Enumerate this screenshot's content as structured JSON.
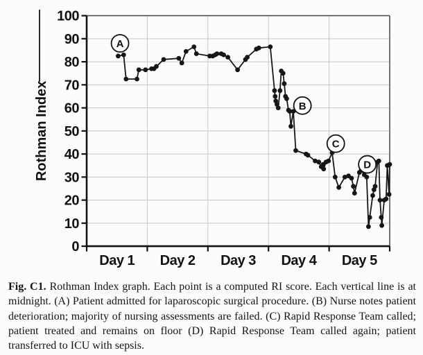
{
  "caption": {
    "label": "Fig. C1.",
    "text": "Rothman Index graph. Each point is a computed RI score. Each vertical line is at midnight. (A) Patient admitted for laparoscopic surgical procedure. (B) Nurse notes patient deterioration; majority of nursing assessments are failed. (C) Rapid Response Team called; patient treated and remains on floor (D) Rapid Response Team called again; patient transferred to ICU with sepsis.",
    "annotation_letters": [
      "A",
      "B",
      "C",
      "D"
    ]
  },
  "chart_data": {
    "type": "line",
    "title": "",
    "xlabel": "",
    "ylabel": "Rothman Index",
    "ylim": [
      0,
      100
    ],
    "xlim": [
      0,
      5
    ],
    "y_ticks": [
      0,
      10,
      20,
      30,
      40,
      50,
      60,
      70,
      80,
      90,
      100
    ],
    "x_tick_labels": [
      "Day 1",
      "Day 2",
      "Day 3",
      "Day 4",
      "Day 5"
    ],
    "grid": true,
    "legend": "none",
    "line_color": "#161616",
    "marker_color": "#161616",
    "grid_color": "#c6c6c6",
    "border_color": "#4f4f4f",
    "axis_color": "#111111",
    "points": [
      [
        0.52,
        82.5
      ],
      [
        0.61,
        83
      ],
      [
        0.65,
        72.5
      ],
      [
        0.83,
        72.5
      ],
      [
        0.86,
        76.5
      ],
      [
        0.97,
        76.5
      ],
      [
        1.07,
        77
      ],
      [
        1.11,
        77
      ],
      [
        1.15,
        78
      ],
      [
        1.27,
        81
      ],
      [
        1.52,
        81.5
      ],
      [
        1.57,
        79.5
      ],
      [
        1.64,
        84.5
      ],
      [
        1.77,
        86.5
      ],
      [
        1.81,
        83.5
      ],
      [
        2.03,
        82.5
      ],
      [
        2.08,
        82.5
      ],
      [
        2.12,
        83
      ],
      [
        2.15,
        83.5
      ],
      [
        2.22,
        83.5
      ],
      [
        2.26,
        83
      ],
      [
        2.33,
        82
      ],
      [
        2.49,
        76.5
      ],
      [
        2.62,
        81
      ],
      [
        2.65,
        82
      ],
      [
        2.8,
        85.5
      ],
      [
        2.84,
        86
      ],
      [
        3.03,
        86.5
      ],
      [
        3.1,
        67.5
      ],
      [
        3.11,
        65
      ],
      [
        3.12,
        63
      ],
      [
        3.14,
        61.5
      ],
      [
        3.16,
        60
      ],
      [
        3.19,
        67.5
      ],
      [
        3.21,
        76
      ],
      [
        3.24,
        75
      ],
      [
        3.26,
        70.5
      ],
      [
        3.28,
        65
      ],
      [
        3.3,
        64
      ],
      [
        3.33,
        59
      ],
      [
        3.35,
        58.5
      ],
      [
        3.37,
        52
      ],
      [
        3.41,
        58.5
      ],
      [
        3.45,
        41.5
      ],
      [
        3.62,
        40
      ],
      [
        3.65,
        39.5
      ],
      [
        3.77,
        37
      ],
      [
        3.83,
        36.5
      ],
      [
        3.87,
        34.5
      ],
      [
        3.9,
        35.5
      ],
      [
        3.91,
        33.5
      ],
      [
        3.95,
        36.5
      ],
      [
        3.99,
        37
      ],
      [
        4.05,
        40.5
      ],
      [
        4.1,
        30
      ],
      [
        4.16,
        25.5
      ],
      [
        4.26,
        30
      ],
      [
        4.32,
        30.5
      ],
      [
        4.37,
        29.5
      ],
      [
        4.4,
        26
      ],
      [
        4.42,
        23
      ],
      [
        4.5,
        32
      ],
      [
        4.53,
        33
      ],
      [
        4.58,
        31
      ],
      [
        4.62,
        30
      ],
      [
        4.65,
        8.5
      ],
      [
        4.67,
        12.5
      ],
      [
        4.72,
        22
      ],
      [
        4.74,
        24.5
      ],
      [
        4.76,
        26
      ],
      [
        4.8,
        36.5
      ],
      [
        4.82,
        37
      ],
      [
        4.84,
        20
      ],
      [
        4.86,
        12.5
      ],
      [
        4.87,
        9
      ],
      [
        4.91,
        20
      ],
      [
        4.94,
        20.5
      ],
      [
        4.96,
        35
      ],
      [
        4.99,
        22.5
      ],
      [
        5.0,
        35.5
      ]
    ],
    "annotations": [
      {
        "label": "A",
        "x": 0.55,
        "y": 88
      },
      {
        "label": "B",
        "x": 3.56,
        "y": 61
      },
      {
        "label": "C",
        "x": 4.11,
        "y": 44.5
      },
      {
        "label": "D",
        "x": 4.63,
        "y": 35.5
      }
    ]
  }
}
